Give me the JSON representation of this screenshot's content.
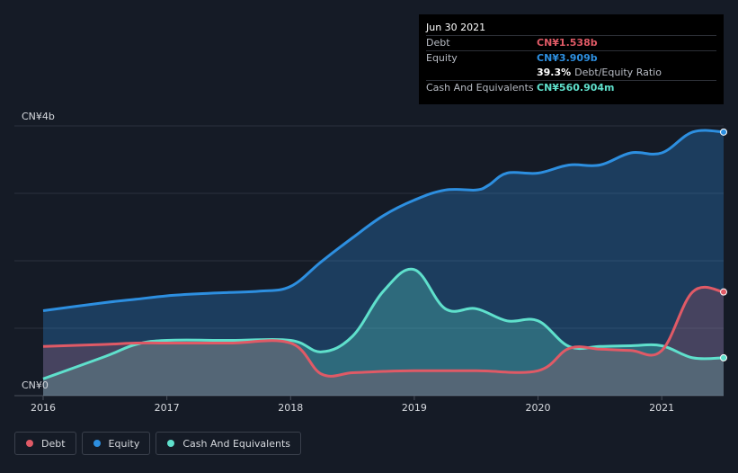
{
  "chart_data": {
    "type": "area",
    "y_unit_labels": {
      "top": "CN¥4b",
      "bottom": "CN¥0"
    },
    "ylim": [
      0,
      4.0
    ],
    "xlim": [
      2016.0,
      2021.5
    ],
    "x_ticks": [
      2016,
      2017,
      2018,
      2019,
      2020,
      2021
    ],
    "x_tick_labels": [
      "2016",
      "2017",
      "2018",
      "2019",
      "2020",
      "2021"
    ],
    "series": [
      {
        "name": "Equity",
        "color": "#2d8fe0",
        "points": [
          [
            2016.0,
            1.26
          ],
          [
            2016.5,
            1.38
          ],
          [
            2016.75,
            1.43
          ],
          [
            2017.0,
            1.48
          ],
          [
            2017.25,
            1.51
          ],
          [
            2017.5,
            1.53
          ],
          [
            2017.75,
            1.55
          ],
          [
            2018.0,
            1.62
          ],
          [
            2018.25,
            1.99
          ],
          [
            2018.5,
            2.34
          ],
          [
            2018.75,
            2.67
          ],
          [
            2019.0,
            2.9
          ],
          [
            2019.25,
            3.05
          ],
          [
            2019.5,
            3.05
          ],
          [
            2019.6,
            3.12
          ],
          [
            2019.75,
            3.3
          ],
          [
            2020.0,
            3.3
          ],
          [
            2020.25,
            3.42
          ],
          [
            2020.5,
            3.42
          ],
          [
            2020.75,
            3.6
          ],
          [
            2021.0,
            3.6
          ],
          [
            2021.25,
            3.909
          ],
          [
            2021.5,
            3.909
          ]
        ]
      },
      {
        "name": "Cash And Equivalents",
        "color": "#5fe0cc",
        "points": [
          [
            2016.0,
            0.25
          ],
          [
            2016.5,
            0.58
          ],
          [
            2016.75,
            0.76
          ],
          [
            2017.0,
            0.82
          ],
          [
            2017.5,
            0.82
          ],
          [
            2018.0,
            0.82
          ],
          [
            2018.25,
            0.65
          ],
          [
            2018.5,
            0.88
          ],
          [
            2018.75,
            1.55
          ],
          [
            2019.0,
            1.87
          ],
          [
            2019.25,
            1.29
          ],
          [
            2019.5,
            1.29
          ],
          [
            2019.75,
            1.11
          ],
          [
            2020.0,
            1.11
          ],
          [
            2020.25,
            0.73
          ],
          [
            2020.5,
            0.73
          ],
          [
            2020.75,
            0.74
          ],
          [
            2021.0,
            0.74
          ],
          [
            2021.25,
            0.561
          ],
          [
            2021.5,
            0.561
          ]
        ]
      },
      {
        "name": "Debt",
        "color": "#e05a66",
        "points": [
          [
            2016.0,
            0.73
          ],
          [
            2016.5,
            0.76
          ],
          [
            2016.75,
            0.78
          ],
          [
            2017.0,
            0.78
          ],
          [
            2017.5,
            0.78
          ],
          [
            2018.0,
            0.78
          ],
          [
            2018.25,
            0.32
          ],
          [
            2018.5,
            0.34
          ],
          [
            2018.75,
            0.36
          ],
          [
            2019.0,
            0.37
          ],
          [
            2019.5,
            0.37
          ],
          [
            2020.0,
            0.37
          ],
          [
            2020.25,
            0.7
          ],
          [
            2020.5,
            0.69
          ],
          [
            2020.75,
            0.67
          ],
          [
            2021.0,
            0.67
          ],
          [
            2021.25,
            1.538
          ],
          [
            2021.5,
            1.538
          ]
        ]
      }
    ]
  },
  "tooltip": {
    "date": "Jun 30 2021",
    "rows": [
      {
        "label": "Debt",
        "value": "CN¥1.538b",
        "color": "#e05a66"
      },
      {
        "label": "Equity",
        "value": "CN¥3.909b",
        "color": "#2d8fe0"
      }
    ],
    "ratio_value": "39.3%",
    "ratio_label": "Debt/Equity Ratio",
    "cash_label": "Cash And Equivalents",
    "cash_value": "CN¥560.904m",
    "cash_color": "#5fe0cc"
  },
  "legend": [
    {
      "label": "Debt",
      "color": "#e05a66"
    },
    {
      "label": "Equity",
      "color": "#2d8fe0"
    },
    {
      "label": "Cash And Equivalents",
      "color": "#5fe0cc"
    }
  ]
}
